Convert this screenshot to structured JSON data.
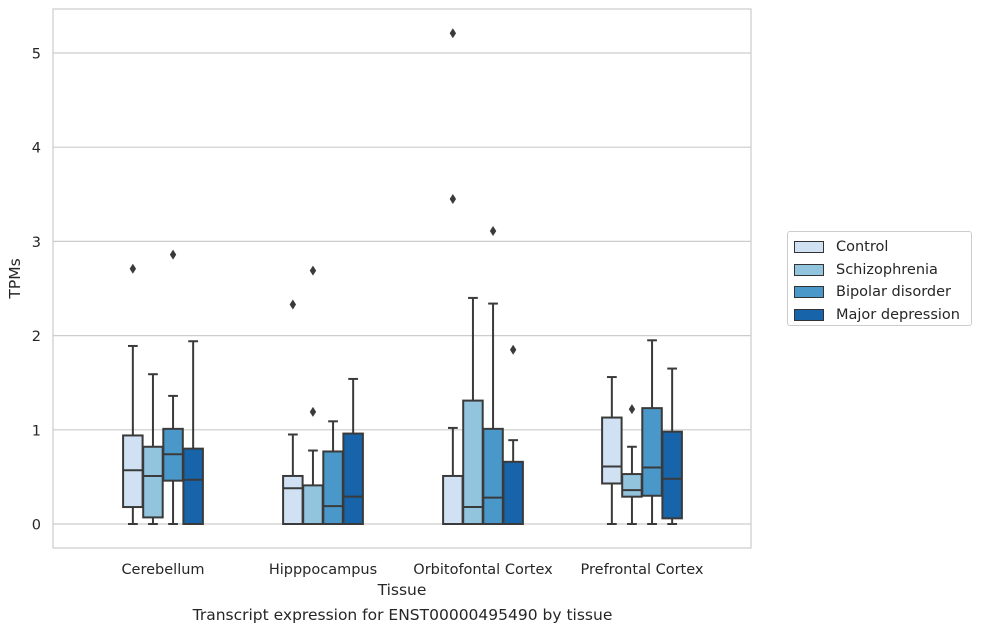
{
  "chart_data": {
    "type": "box",
    "title": "",
    "xlabel": "Tissue",
    "ylabel": "TPMs",
    "ylim": [
      -0.25,
      5.47
    ],
    "yticks": [
      0,
      1,
      2,
      3,
      4,
      5
    ],
    "grid": "horizontal",
    "legend_position": "right",
    "categories": [
      "Cerebellum",
      "Hipppocampus",
      "Orbitofontal Cortex",
      "Prefrontal Cortex"
    ],
    "series": [
      {
        "name": "Control",
        "color": "#cfe1f2",
        "boxes": [
          {
            "whislo": 0.0,
            "q1": 0.18,
            "med": 0.57,
            "q3": 0.94,
            "whishi": 1.89,
            "fliers": [
              2.71
            ]
          },
          {
            "whislo": 0.0,
            "q1": 0.0,
            "med": 0.38,
            "q3": 0.51,
            "whishi": 0.95,
            "fliers": [
              2.33
            ]
          },
          {
            "whislo": 0.0,
            "q1": 0.0,
            "med": 0.0,
            "q3": 0.51,
            "whishi": 1.02,
            "fliers": [
              3.45,
              5.21
            ]
          },
          {
            "whislo": 0.0,
            "q1": 0.43,
            "med": 0.61,
            "q3": 1.13,
            "whishi": 1.56,
            "fliers": []
          }
        ]
      },
      {
        "name": "Schizophrenia",
        "color": "#93c4de",
        "boxes": [
          {
            "whislo": 0.0,
            "q1": 0.07,
            "med": 0.51,
            "q3": 0.82,
            "whishi": 1.59,
            "fliers": []
          },
          {
            "whislo": 0.0,
            "q1": 0.0,
            "med": 0.0,
            "q3": 0.41,
            "whishi": 0.78,
            "fliers": [
              1.19,
              2.69
            ]
          },
          {
            "whislo": 0.0,
            "q1": 0.0,
            "med": 0.18,
            "q3": 1.31,
            "whishi": 2.4,
            "fliers": []
          },
          {
            "whislo": 0.0,
            "q1": 0.29,
            "med": 0.36,
            "q3": 0.53,
            "whishi": 0.82,
            "fliers": [
              1.22
            ]
          }
        ]
      },
      {
        "name": "Bipolar disorder",
        "color": "#4a98c9",
        "boxes": [
          {
            "whislo": 0.0,
            "q1": 0.46,
            "med": 0.74,
            "q3": 1.01,
            "whishi": 1.36,
            "fliers": [
              2.86
            ]
          },
          {
            "whislo": 0.0,
            "q1": 0.0,
            "med": 0.19,
            "q3": 0.77,
            "whishi": 1.09,
            "fliers": []
          },
          {
            "whislo": 0.0,
            "q1": 0.0,
            "med": 0.28,
            "q3": 1.01,
            "whishi": 2.34,
            "fliers": [
              3.11
            ]
          },
          {
            "whislo": 0.0,
            "q1": 0.3,
            "med": 0.6,
            "q3": 1.23,
            "whishi": 1.95,
            "fliers": []
          }
        ]
      },
      {
        "name": "Major depression",
        "color": "#1764ab",
        "boxes": [
          {
            "whislo": 0.0,
            "q1": 0.0,
            "med": 0.47,
            "q3": 0.8,
            "whishi": 1.94,
            "fliers": []
          },
          {
            "whislo": 0.0,
            "q1": 0.0,
            "med": 0.29,
            "q3": 0.96,
            "whishi": 1.54,
            "fliers": []
          },
          {
            "whislo": 0.0,
            "q1": 0.0,
            "med": 0.0,
            "q3": 0.66,
            "whishi": 0.89,
            "fliers": [
              1.85
            ]
          },
          {
            "whislo": 0.0,
            "q1": 0.06,
            "med": 0.48,
            "q3": 0.98,
            "whishi": 1.65,
            "fliers": []
          }
        ]
      }
    ],
    "caption": "Transcript expression for ENST00000495490 by tissue"
  }
}
